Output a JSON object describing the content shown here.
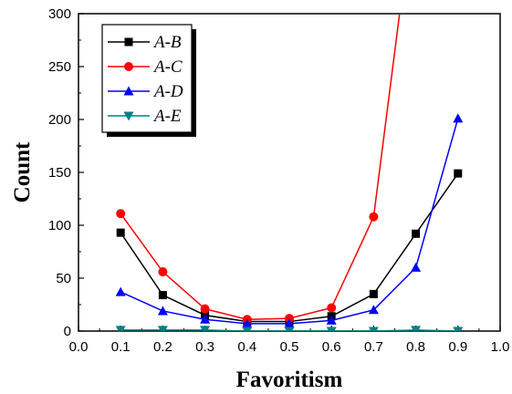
{
  "chart_data": {
    "type": "line",
    "title": "",
    "xlabel": "Favoritism",
    "ylabel": "Count",
    "xlim": [
      0.0,
      1.0
    ],
    "ylim": [
      0,
      300
    ],
    "grid": false,
    "legend_position": "top-left",
    "x_ticks": [
      "0.0",
      "0.1",
      "0.2",
      "0.3",
      "0.4",
      "0.5",
      "0.6",
      "0.7",
      "0.8",
      "0.9",
      "1.0"
    ],
    "y_ticks": [
      "0",
      "50",
      "100",
      "150",
      "200",
      "250",
      "300"
    ],
    "x": [
      0.1,
      0.2,
      0.3,
      0.4,
      0.5,
      0.6,
      0.7,
      0.8,
      0.9
    ],
    "series": [
      {
        "name": "A-B",
        "color": "#000000",
        "marker": "square",
        "values": [
          93,
          34,
          15,
          9,
          9,
          14,
          35,
          92,
          149
        ]
      },
      {
        "name": "A-C",
        "color": "#ff0000",
        "marker": "circle",
        "values": [
          111,
          56,
          21,
          11,
          12,
          22,
          108,
          420,
          null
        ]
      },
      {
        "name": "A-D",
        "color": "#0000ff",
        "marker": "triangle-up",
        "values": [
          37,
          19,
          11,
          7,
          7,
          10,
          20,
          60,
          201
        ]
      },
      {
        "name": "A-E",
        "color": "#008080",
        "marker": "triangle-down",
        "values": [
          1,
          1,
          1,
          0,
          0,
          0,
          0,
          1,
          0
        ]
      }
    ]
  }
}
